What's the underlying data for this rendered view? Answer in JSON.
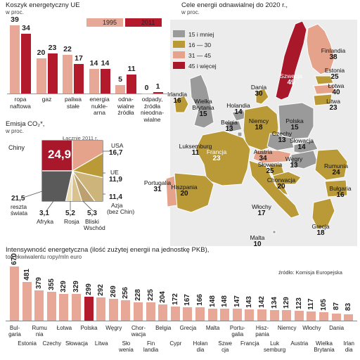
{
  "colors": {
    "c1995": "#e8a898",
    "c2011": "#b31b2d",
    "gray": "#9a9a9a",
    "light_olive": "#e8d39a",
    "olive": "#b99a36",
    "salmon": "#e4a38a",
    "dark_red": "#a8172a",
    "dark_gray": "#5a5a5a",
    "map_bg": "#ececec",
    "sea": "#ffffff"
  },
  "chart_data": [
    {
      "type": "bar",
      "title": "Koszyk energetyczny UE",
      "subtitle": "w proc.",
      "categories": [
        "ropa naftowa",
        "gaz",
        "paliwa stałe",
        "energia nuklearna",
        "odnawialne źródła",
        "odpady, źródła nieodnawialne"
      ],
      "series": [
        {
          "name": "1995",
          "values": [
            39,
            20,
            22,
            14,
            5,
            0
          ]
        },
        {
          "name": "2011",
          "values": [
            34,
            23,
            17,
            14,
            11,
            1
          ]
        }
      ],
      "ylim": [
        0,
        40
      ]
    },
    {
      "type": "pie",
      "title": "Emisja CO₂*,",
      "subtitle": "w proc.",
      "year_label": "Łącznie 2011 r.",
      "slices": [
        {
          "label": "Chiny",
          "value": 24.9
        },
        {
          "label": "USA",
          "value": 16.7
        },
        {
          "label": "UE",
          "value": 11.9
        },
        {
          "label": "Azja (bez Chin)",
          "value": 11.4
        },
        {
          "label": "Bliski Wschód",
          "value": 5.3
        },
        {
          "label": "Rosja",
          "value": 5.2
        },
        {
          "label": "Afryka",
          "value": 3.1
        },
        {
          "label": "reszta świata",
          "value": 21.5
        }
      ]
    },
    {
      "type": "bar",
      "title": "Intensywność energetyczna (ilość zużytej energii na jednostkę PKB),",
      "subtitle": "ton ekwiwalentu ropy/mln euro",
      "source": "źródło: Komisja Europejska",
      "categories": [
        "Bulgaria",
        "Estonia",
        "Rumunia",
        "Czechy",
        "Łotwa",
        "Słowacja",
        "Polska",
        "Litwa",
        "Węgry",
        "Słowenia",
        "Chorwacja",
        "Finlandia",
        "Belgia",
        "Cypr",
        "Grecja",
        "Holandia",
        "Malta",
        "Szwecja",
        "Portugalia",
        "Francja",
        "Hiszpania",
        "Luksemburg",
        "Niemcy",
        "Austria",
        "Włochy",
        "Wielka Brytania",
        "Dania",
        "Irlandia"
      ],
      "values": [
        670,
        481,
        379,
        355,
        329,
        329,
        299,
        292,
        269,
        256,
        228,
        225,
        204,
        172,
        167,
        166,
        148,
        148,
        147,
        143,
        142,
        134,
        129,
        123,
        117,
        105,
        87,
        83
      ],
      "highlight": "Polska",
      "ylim": [
        0,
        700
      ],
      "yticks": [
        0,
        100,
        200,
        300,
        400,
        500,
        600
      ]
    },
    {
      "type": "map",
      "title": "Cele energii odnawialnej do 2020 r.,",
      "subtitle": "w proc.",
      "legend": [
        "15 i mniej",
        "16 — 30",
        "31 — 45",
        "45 i więcej"
      ],
      "countries": [
        {
          "name": "Finlandia",
          "value": 38
        },
        {
          "name": "Szwecja",
          "value": 49
        },
        {
          "name": "Estonia",
          "value": 25
        },
        {
          "name": "Łotwa",
          "value": 40
        },
        {
          "name": "Litwa",
          "value": 23
        },
        {
          "name": "Irlandia",
          "value": 16
        },
        {
          "name": "Wielka Brytania",
          "value": 15
        },
        {
          "name": "Dania",
          "value": 30
        },
        {
          "name": "Holandia",
          "value": 14
        },
        {
          "name": "Niemcy",
          "value": 18
        },
        {
          "name": "Polska",
          "value": 15
        },
        {
          "name": "Belgia",
          "value": 13
        },
        {
          "name": "Luksemburg",
          "value": 11
        },
        {
          "name": "Czechy",
          "value": 13
        },
        {
          "name": "Słowacja",
          "value": 14
        },
        {
          "name": "Francja",
          "value": 23
        },
        {
          "name": "Austria",
          "value": 34
        },
        {
          "name": "Węgry",
          "value": 13
        },
        {
          "name": "Rumunia",
          "value": 24
        },
        {
          "name": "Słowenia",
          "value": 25
        },
        {
          "name": "Chorwacja",
          "value": 20
        },
        {
          "name": "Portugalia",
          "value": 31
        },
        {
          "name": "Hiszpania",
          "value": 20
        },
        {
          "name": "Włochy",
          "value": 17
        },
        {
          "name": "Bułgaria",
          "value": 16
        },
        {
          "name": "Grecja",
          "value": 18
        },
        {
          "name": "Malta",
          "value": 10
        }
      ]
    }
  ],
  "texts": {
    "pie_left_china": "Chiny",
    "pie_china_value": "24,9",
    "pie_usa": "USA",
    "pie_usa_v": "16,7",
    "pie_ue": "UE",
    "pie_ue_v": "11,9",
    "pie_azja_v": "11,4",
    "pie_azja": "Azja",
    "pie_azja2": "(bez Chin)",
    "pie_reszta_v": "21,5",
    "pie_reszta": "reszta",
    "pie_reszta2": "świata",
    "pie_afryka_v": "3,1",
    "pie_afryka": "Afryka",
    "pie_rosja_v": "5,2",
    "pie_rosja": "Rosja",
    "pie_bw_v": "5,3",
    "pie_bw": "Bliski",
    "pie_bw2": "Wschód",
    "ek_cat": [
      "ropa\nnaftowa",
      "gaz",
      "paliwa\nstałe",
      "energia\nnukle-\narna",
      "odna-\nwialne\nźródła",
      "odpady,\nźródła\nnieodna-\nwialne"
    ],
    "int_cat_row1": [
      "Bul-\ngaria",
      "Rumu\nnia",
      "Łotwa",
      "Polska",
      "Węgry",
      "Chor-\nwacja",
      "Belgia",
      "Grecja",
      "Malta",
      "Portu-\ngalia",
      "Hisz-\npania",
      "Niemcy",
      "Włochy",
      "Dania"
    ],
    "int_cat_row2": [
      "Estonia",
      "Czechy",
      "Słowacja",
      "Litwa",
      "Sło\nwenia",
      "Fin\nlandia",
      "Cypr",
      "Holan\ndia",
      "Szwe\ncja",
      "Francja",
      "Luk\nsemburg",
      "Austria",
      "Wielka\nBrytania",
      "Irlan\ndia"
    ]
  }
}
